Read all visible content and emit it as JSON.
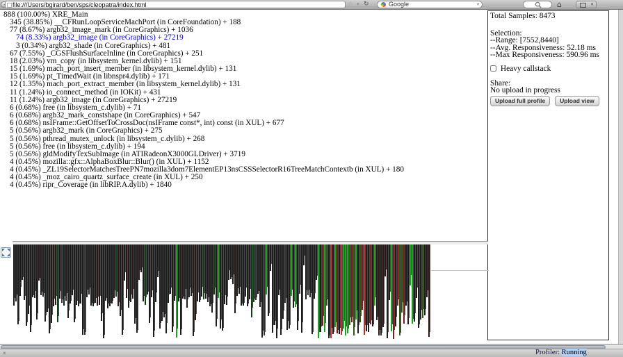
{
  "browser": {
    "url": "file:///Users/bgirard/ben/sps/cleopatra/index.html",
    "search_engine": "Google",
    "icons": {
      "back": "◀",
      "star": "☆",
      "caret": "▾",
      "reload": "↻",
      "home": "⌂"
    }
  },
  "call_tree": {
    "selected_color": "#0000cc",
    "rows": [
      {
        "text": "888 (100.00%) XRE_Main",
        "indent": 0,
        "selected": false
      },
      {
        "text": "345 (38.85%) __CFRunLoopServiceMachPort (in CoreFoundation) + 188",
        "indent": 1,
        "selected": false
      },
      {
        "text": "77 (8.67%) argb32_image_mark (in CoreGraphics) + 1036",
        "indent": 1,
        "selected": false
      },
      {
        "text": "74 (8.33%) argb32_image (in CoreGraphics) + 27219",
        "indent": 2,
        "selected": true
      },
      {
        "text": "3 (0.34%) argb32_shade (in CoreGraphics) + 481",
        "indent": 2,
        "selected": false
      },
      {
        "text": "67 (7.55%) _CGSFlushSurfaceInline (in CoreGraphics) + 251",
        "indent": 1,
        "selected": false
      },
      {
        "text": "18 (2.03%) vm_copy (in libsystem_kernel.dylib) + 151",
        "indent": 1,
        "selected": false
      },
      {
        "text": "15 (1.69%) mach_port_insert_member (in libsystem_kernel.dylib) + 131",
        "indent": 1,
        "selected": false
      },
      {
        "text": "15 (1.69%) pt_TimedWait (in libnspr4.dylib) + 171",
        "indent": 1,
        "selected": false
      },
      {
        "text": "12 (1.35%) mach_port_extract_member (in libsystem_kernel.dylib) + 131",
        "indent": 1,
        "selected": false
      },
      {
        "text": "11 (1.24%) io_connect_method (in IOKit) + 431",
        "indent": 1,
        "selected": false
      },
      {
        "text": "11 (1.24%) argb32_image (in CoreGraphics) + 27219",
        "indent": 1,
        "selected": false
      },
      {
        "text": "6 (0.68%) free (in libsystem_c.dylib) + 71",
        "indent": 1,
        "selected": false
      },
      {
        "text": "6 (0.68%) argb32_mark_constshape (in CoreGraphics) + 547",
        "indent": 1,
        "selected": false
      },
      {
        "text": "6 (0.68%) nsIFrame::GetOffsetToCrossDoc(nsIFrame const*, int) const (in XUL) + 677",
        "indent": 1,
        "selected": false
      },
      {
        "text": "5 (0.56%) argb32_mark (in CoreGraphics) + 275",
        "indent": 1,
        "selected": false
      },
      {
        "text": "5 (0.56%) pthread_mutex_unlock (in libsystem_c.dylib) + 268",
        "indent": 1,
        "selected": false
      },
      {
        "text": "5 (0.56%) free (in libsystem_c.dylib) + 194",
        "indent": 1,
        "selected": false
      },
      {
        "text": "5 (0.56%) gldModifyTexSubImage (in ATIRadeonX3000GLDriver) + 3719",
        "indent": 1,
        "selected": false
      },
      {
        "text": "4 (0.45%) mozilla::gfx::AlphaBoxBlur::Blur() (in XUL) + 1152",
        "indent": 1,
        "selected": false
      },
      {
        "text": "4 (0.45%) _ZL19SelectorMatchesTreePN7mozilla3dom7ElementEP13nsCSSSelectorR16TreeMatchContextb (in XUL) + 180",
        "indent": 1,
        "selected": false
      },
      {
        "text": "4 (0.45%) _moz_cairo_quartz_surface_create (in XUL) + 250",
        "indent": 1,
        "selected": false
      },
      {
        "text": "4 (0.45%) ripr_Coverage (in libRIP.A.dylib) + 1840",
        "indent": 1,
        "selected": false
      }
    ]
  },
  "sidebar": {
    "total_samples": "Total Samples: 8473",
    "selection_heading": "Selection:",
    "range": "--Range: [7552,8440]",
    "avg_responsiveness": "--Avg. Responsiveness: 52.18 ms",
    "max_responsiveness": "--Max Responsiveness: 590.96 ms",
    "heavy_callstack_label": "Heavy callstack",
    "heavy_callstack_checked": false,
    "share_heading": "Share:",
    "upload_status": "No upload in progress",
    "upload_full_label": "Upload full profile",
    "upload_view_label": "Upload view"
  },
  "statusbar": {
    "close_label": "×",
    "profiler_label": "Profiler:",
    "profiler_state": "Running"
  },
  "histogram": {
    "seed": 1337,
    "bar_count": 200,
    "main_width": 2,
    "gap_width": 1,
    "separator_color": "#4a4a4a",
    "segments": [
      {
        "until": 0.37,
        "colors": [
          [
            "#1d1d1d",
            0.8
          ],
          [
            "#2e1414",
            0.1
          ],
          [
            "#343434",
            0.05
          ],
          [
            "#133d12",
            0.03
          ],
          [
            "#1ca21c",
            0.02
          ]
        ],
        "heights": [
          [
            70,
            92,
            0.5
          ],
          [
            95,
            125,
            0.3
          ],
          [
            126,
            136,
            0.12
          ],
          [
            36,
            60,
            0.08
          ]
        ]
      },
      {
        "until": 0.62,
        "colors": [
          [
            "#1d1d1d",
            0.72
          ],
          [
            "#2e1414",
            0.12
          ],
          [
            "#1ca21c",
            0.07
          ],
          [
            "#133d12",
            0.05
          ],
          [
            "#343434",
            0.04
          ]
        ],
        "heights": [
          [
            70,
            92,
            0.45
          ],
          [
            95,
            125,
            0.3
          ],
          [
            126,
            136,
            0.15
          ],
          [
            36,
            60,
            0.1
          ]
        ]
      },
      {
        "until": 0.73,
        "colors": [
          [
            "#1d1d1d",
            0.74
          ],
          [
            "#2e1414",
            0.08
          ],
          [
            "#1ca21c",
            0.08
          ],
          [
            "#343434",
            0.1
          ]
        ],
        "heights": [
          [
            70,
            92,
            0.4
          ],
          [
            95,
            125,
            0.25
          ],
          [
            126,
            136,
            0.15
          ],
          [
            30,
            55,
            0.2
          ]
        ]
      },
      {
        "until": 0.86,
        "colors": [
          [
            "#1ca21c",
            0.3
          ],
          [
            "#7c1d1d",
            0.22
          ],
          [
            "#b63232",
            0.16
          ],
          [
            "#1d1d1d",
            0.18
          ],
          [
            "#315515",
            0.08
          ],
          [
            "#4a0f0f",
            0.06
          ]
        ],
        "heights": [
          [
            115,
            136,
            0.7
          ],
          [
            85,
            114,
            0.25
          ],
          [
            50,
            80,
            0.05
          ]
        ]
      },
      {
        "until": 1.01,
        "colors": [
          [
            "#1d1d1d",
            0.5
          ],
          [
            "#2e1414",
            0.16
          ],
          [
            "#1ca21c",
            0.12
          ],
          [
            "#7c1d1d",
            0.12
          ],
          [
            "#315515",
            0.1
          ]
        ],
        "heights": [
          [
            100,
            136,
            0.6
          ],
          [
            75,
            99,
            0.3
          ],
          [
            40,
            70,
            0.1
          ]
        ]
      }
    ]
  }
}
